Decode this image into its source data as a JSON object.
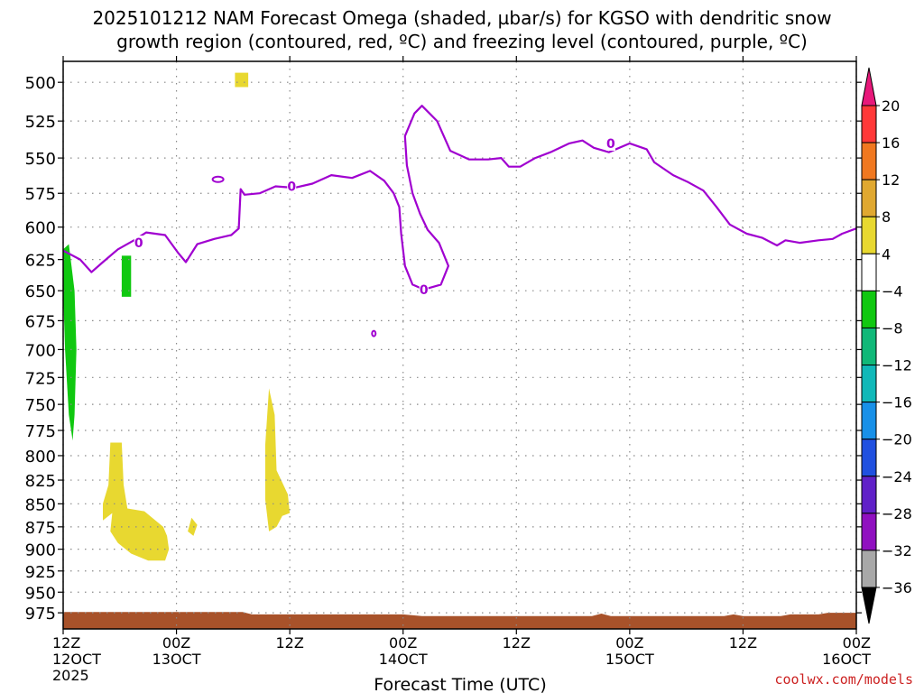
{
  "chart_data": {
    "type": "heatmap",
    "title_line1": "2025101212 NAM Forecast Omega (shaded, µbar/s) for KGSO with dendritic snow",
    "title_line2": "growth region (contoured, red, ºC) and freezing level (contoured, purple, ºC)",
    "xlabel": "Forecast Time (UTC)",
    "credit": "coolwx.com/models",
    "x_range_hours": [
      0,
      84
    ],
    "y_range_hpa": [
      487,
      995
    ],
    "y_scale": "log-pressure",
    "grid": "dotted",
    "x_ticks": [
      {
        "hour": 0,
        "label1": "12Z",
        "label2": "12OCT",
        "label3": "2025"
      },
      {
        "hour": 12,
        "label1": "00Z",
        "label2": "13OCT",
        "label3": ""
      },
      {
        "hour": 24,
        "label1": "12Z",
        "label2": "",
        "label3": ""
      },
      {
        "hour": 36,
        "label1": "00Z",
        "label2": "14OCT",
        "label3": ""
      },
      {
        "hour": 48,
        "label1": "12Z",
        "label2": "",
        "label3": ""
      },
      {
        "hour": 60,
        "label1": "00Z",
        "label2": "15OCT",
        "label3": ""
      },
      {
        "hour": 72,
        "label1": "12Z",
        "label2": "",
        "label3": ""
      },
      {
        "hour": 84,
        "label1": "00Z",
        "label2": "16OCT",
        "label3": ""
      }
    ],
    "y_ticks": [
      500,
      525,
      550,
      575,
      600,
      625,
      650,
      675,
      700,
      725,
      750,
      775,
      800,
      825,
      850,
      875,
      900,
      925,
      950,
      975
    ],
    "colorbar": {
      "boundaries": [
        "20",
        "16",
        "12",
        "8",
        "4",
        "−4",
        "−8",
        "−12",
        "−16",
        "−20",
        "−24",
        "−28",
        "−32",
        "−36"
      ],
      "colors": [
        "#ff3838",
        "#f07820",
        "#e0a830",
        "#e8d830",
        "#ffffff",
        "#10c810",
        "#10b878",
        "#10b8b8",
        "#1890e8",
        "#2050e0",
        "#6020c8",
        "#9010c0",
        "#a8a8a8"
      ],
      "top_arrow_color": "#e8187a",
      "bottom_arrow_color": "#000000"
    },
    "shaded_regions": [
      {
        "value_class": "4 to 8",
        "color": "#e8d830",
        "points": [
          [
            18.2,
            494
          ],
          [
            19.6,
            494
          ],
          [
            19.6,
            503
          ],
          [
            18.2,
            503
          ]
        ]
      },
      {
        "value_class": "-4 to -8",
        "color": "#10c810",
        "points": [
          [
            0,
            617
          ],
          [
            0.6,
            613
          ],
          [
            1.2,
            650
          ],
          [
            1.4,
            700
          ],
          [
            1.2,
            760
          ],
          [
            1.0,
            785
          ],
          [
            0.6,
            760
          ],
          [
            0.2,
            700
          ],
          [
            0,
            650
          ]
        ]
      },
      {
        "value_class": "-4 to -8",
        "color": "#10c810",
        "points": [
          [
            6.2,
            622
          ],
          [
            7.2,
            622
          ],
          [
            7.2,
            655
          ],
          [
            6.2,
            655
          ]
        ]
      },
      {
        "value_class": "4 to 8",
        "color": "#e8d830",
        "points": [
          [
            5.0,
            787
          ],
          [
            6.2,
            787
          ],
          [
            6.4,
            830
          ],
          [
            6.8,
            855
          ],
          [
            8.6,
            858
          ],
          [
            10.6,
            875
          ],
          [
            11.0,
            885
          ],
          [
            11.2,
            900
          ],
          [
            10.8,
            913
          ],
          [
            9.0,
            913
          ],
          [
            7.2,
            905
          ],
          [
            5.8,
            893
          ],
          [
            5.0,
            880
          ],
          [
            5.2,
            860
          ],
          [
            4.2,
            868
          ],
          [
            4.2,
            850
          ],
          [
            4.8,
            830
          ]
        ]
      },
      {
        "value_class": "4 to 8",
        "color": "#e8d830",
        "points": [
          [
            13.2,
            880
          ],
          [
            13.6,
            865
          ],
          [
            14.2,
            873
          ],
          [
            13.8,
            885
          ]
        ]
      },
      {
        "value_class": "4 to 8",
        "color": "#e8d830",
        "points": [
          [
            21.8,
            735
          ],
          [
            22.4,
            760
          ],
          [
            22.6,
            815
          ],
          [
            23.8,
            840
          ],
          [
            24.0,
            860
          ],
          [
            23.2,
            863
          ],
          [
            22.6,
            875
          ],
          [
            21.8,
            880
          ],
          [
            21.4,
            845
          ],
          [
            21.4,
            790
          ]
        ]
      },
      {
        "value_class": "terrain",
        "color": "#a8522a",
        "points": [
          [
            0,
            974
          ],
          [
            19,
            974
          ],
          [
            20,
            977
          ],
          [
            36,
            977
          ],
          [
            38,
            979
          ],
          [
            56,
            979
          ],
          [
            57,
            976
          ],
          [
            58,
            979
          ],
          [
            70,
            979
          ],
          [
            71,
            977
          ],
          [
            72,
            979
          ],
          [
            76,
            979
          ],
          [
            77,
            977
          ],
          [
            80,
            977
          ],
          [
            81,
            975
          ],
          [
            84,
            975
          ],
          [
            84,
            995
          ],
          [
            0,
            995
          ]
        ]
      }
    ],
    "freezing_level": {
      "color": "#a000d0",
      "points": [
        [
          0,
          618
        ],
        [
          1.8,
          625
        ],
        [
          3.0,
          635
        ],
        [
          4.2,
          627
        ],
        [
          5.8,
          617
        ],
        [
          7.5,
          610
        ],
        [
          8.8,
          604
        ],
        [
          10.8,
          606
        ],
        [
          12.2,
          620
        ],
        [
          13.0,
          627
        ],
        [
          14.2,
          613
        ],
        [
          16.0,
          609
        ],
        [
          17.8,
          606
        ],
        [
          18.6,
          601
        ],
        [
          18.8,
          572
        ],
        [
          19.2,
          576
        ],
        [
          20.8,
          575
        ],
        [
          22.5,
          570
        ],
        [
          24.5,
          571
        ],
        [
          26.4,
          568
        ],
        [
          28.4,
          562
        ],
        [
          30.6,
          564
        ],
        [
          32.5,
          559
        ],
        [
          34.0,
          566
        ],
        [
          35.0,
          575
        ],
        [
          35.6,
          585
        ],
        [
          35.8,
          605
        ],
        [
          36.2,
          630
        ],
        [
          37.0,
          645
        ],
        [
          38.2,
          649
        ],
        [
          40.0,
          645
        ],
        [
          40.8,
          630
        ],
        [
          39.8,
          612
        ],
        [
          38.6,
          602
        ],
        [
          37.8,
          590
        ],
        [
          37.0,
          575
        ],
        [
          36.4,
          555
        ],
        [
          36.2,
          535
        ],
        [
          37.2,
          520
        ],
        [
          38.0,
          515
        ],
        [
          39.6,
          525
        ],
        [
          41.0,
          545
        ],
        [
          43.0,
          551
        ],
        [
          45.0,
          551
        ],
        [
          46.4,
          550
        ],
        [
          47.2,
          556
        ],
        [
          48.4,
          556
        ],
        [
          50.0,
          550
        ],
        [
          51.6,
          546
        ],
        [
          53.6,
          540
        ],
        [
          55.0,
          538
        ],
        [
          56.2,
          543
        ],
        [
          57.8,
          546
        ],
        [
          60.0,
          540
        ],
        [
          61.8,
          544
        ],
        [
          62.6,
          553
        ],
        [
          64.6,
          562
        ],
        [
          66.2,
          567
        ],
        [
          67.8,
          573
        ],
        [
          69.2,
          585
        ],
        [
          70.6,
          598
        ],
        [
          72.4,
          605
        ],
        [
          74.0,
          608
        ],
        [
          75.6,
          614
        ],
        [
          76.5,
          610
        ],
        [
          78.0,
          612
        ],
        [
          80.0,
          610
        ],
        [
          81.5,
          609
        ],
        [
          82.5,
          605
        ],
        [
          84,
          601
        ]
      ]
    },
    "freezing_level_labels": [
      {
        "hour": 8.0,
        "hpa": 612,
        "text": "0"
      },
      {
        "hour": 24.2,
        "hpa": 570,
        "text": "0"
      },
      {
        "hour": 38.2,
        "hpa": 649,
        "text": "0"
      },
      {
        "hour": 58.0,
        "hpa": 540,
        "text": "0"
      }
    ],
    "freezing_level_small": [
      {
        "hour": 16.4,
        "hpa": 565,
        "rx": 6,
        "ry": 3
      },
      {
        "hour": 32.9,
        "hpa": 686,
        "rx": 2,
        "ry": 3
      }
    ]
  }
}
